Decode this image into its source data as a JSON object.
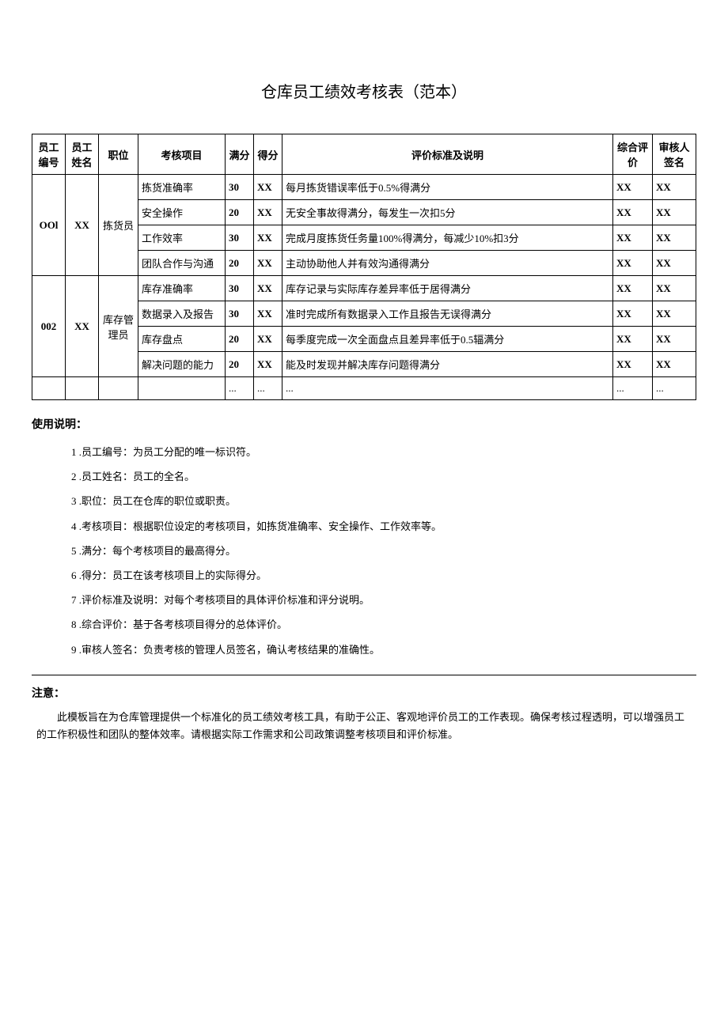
{
  "title": "仓库员工绩效考核表（范本）",
  "table": {
    "headers": {
      "id": "员工编号",
      "name": "员工姓名",
      "position": "职位",
      "item": "考核项目",
      "full": "满分",
      "score": "得分",
      "criteria": "评价标准及说明",
      "comprehensive": "综合评价",
      "signature": "审核人签名"
    },
    "groups": [
      {
        "id": "OOl",
        "name": "XX",
        "position": "拣货员",
        "rows": [
          {
            "item": "拣货准确率",
            "full": "30",
            "score": "XX",
            "criteria": "每月拣货错误率低于0.5%得满分",
            "comp": "XX",
            "sign": "XX"
          },
          {
            "item": "安全操作",
            "full": "20",
            "score": "XX",
            "criteria": "无安全事故得满分，每发生一次扣5分",
            "comp": "XX",
            "sign": "XX"
          },
          {
            "item": "工作效率",
            "full": "30",
            "score": "XX",
            "criteria": "完成月度拣货任务量100%得满分，每减少10%扣3分",
            "comp": "XX",
            "sign": "XX"
          },
          {
            "item": "团队合作与沟通",
            "full": "20",
            "score": "XX",
            "criteria": "主动协助他人并有效沟通得满分",
            "comp": "XX",
            "sign": "XX"
          }
        ]
      },
      {
        "id": "002",
        "name": "XX",
        "position": "库存管理员",
        "rows": [
          {
            "item": "库存准确率",
            "full": "30",
            "score": "XX",
            "criteria": "库存记录与实际库存差异率低于居得满分",
            "comp": "XX",
            "sign": "XX"
          },
          {
            "item": "数据录入及报告",
            "full": "30",
            "score": "XX",
            "criteria": "准时完成所有数据录入工作且报告无误得满分",
            "comp": "XX",
            "sign": "XX"
          },
          {
            "item": "库存盘点",
            "full": "20",
            "score": "XX",
            "criteria": "每季度完成一次全面盘点且差异率低于0.5辐满分",
            "comp": "XX",
            "sign": "XX"
          },
          {
            "item": "解决问题的能力",
            "full": "20",
            "score": "XX",
            "criteria": "能及时发现并解决库存问题得满分",
            "comp": "XX",
            "sign": "XX"
          }
        ]
      }
    ],
    "ellipsis": {
      "full": "...",
      "score": "...",
      "criteria": "...",
      "comp": "...",
      "sign": "..."
    }
  },
  "instructions": {
    "heading": "使用说明：",
    "items": [
      "1 .员工编号：为员工分配的唯一标识符。",
      "2 .员工姓名：员工的全名。",
      "3 .职位：员工在仓库的职位或职责。",
      "4 .考核项目：根据职位设定的考核项目，如拣货准确率、安全操作、工作效率等。",
      "5 .满分：每个考核项目的最高得分。",
      "6 .得分：员工在该考核项目上的实际得分。",
      "7 .评价标准及说明：对每个考核项目的具体评价标准和评分说明。",
      "8 .综合评价：基于各考核项目得分的总体评价。",
      "9 .审核人签名：负责考核的管理人员签名，确认考核结果的准确性。"
    ]
  },
  "notice": {
    "heading": "注意：",
    "body": "此模板旨在为仓库管理提供一个标准化的员工绩效考核工具，有助于公正、客观地评价员工的工作表现。确保考核过程透明，可以增强员工的工作积极性和团队的整体效率。请根据实际工作需求和公司政策调整考核项目和评价标准。"
  }
}
